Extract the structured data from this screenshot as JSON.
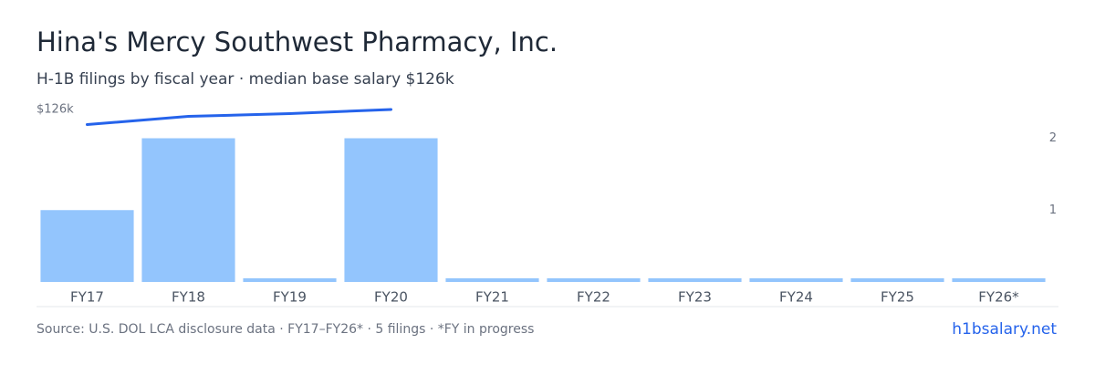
{
  "chart_data": {
    "type": "bar",
    "title": "Hina's Mercy Southwest Pharmacy, Inc.",
    "subtitle": "H-1B filings by fiscal year · median base salary $126k",
    "categories": [
      "FY17",
      "FY18",
      "FY19",
      "FY20",
      "FY21",
      "FY22",
      "FY23",
      "FY24",
      "FY25",
      "FY26*"
    ],
    "series": [
      {
        "name": "H-1B filings",
        "type": "bar",
        "color": "#93c5fd",
        "values": [
          1,
          2,
          0,
          2,
          0,
          0,
          0,
          0,
          0,
          0
        ]
      },
      {
        "name": "Median base salary",
        "type": "line",
        "axis": "y2",
        "color": "#2563eb",
        "values": [
          115000,
          121000,
          123000,
          126000,
          null,
          null,
          null,
          null,
          null,
          null
        ]
      }
    ],
    "ylim": [
      0,
      2.4
    ],
    "yticks": [
      1,
      2
    ],
    "y2lim": [
      0,
      126000
    ],
    "y2ticks": [
      {
        "value": 126000,
        "label": "$126k"
      }
    ],
    "footer": "Source: U.S. DOL LCA disclosure data · FY17–FY26* · 5 filings · *FY in progress",
    "link": "h1bsalary.net"
  }
}
